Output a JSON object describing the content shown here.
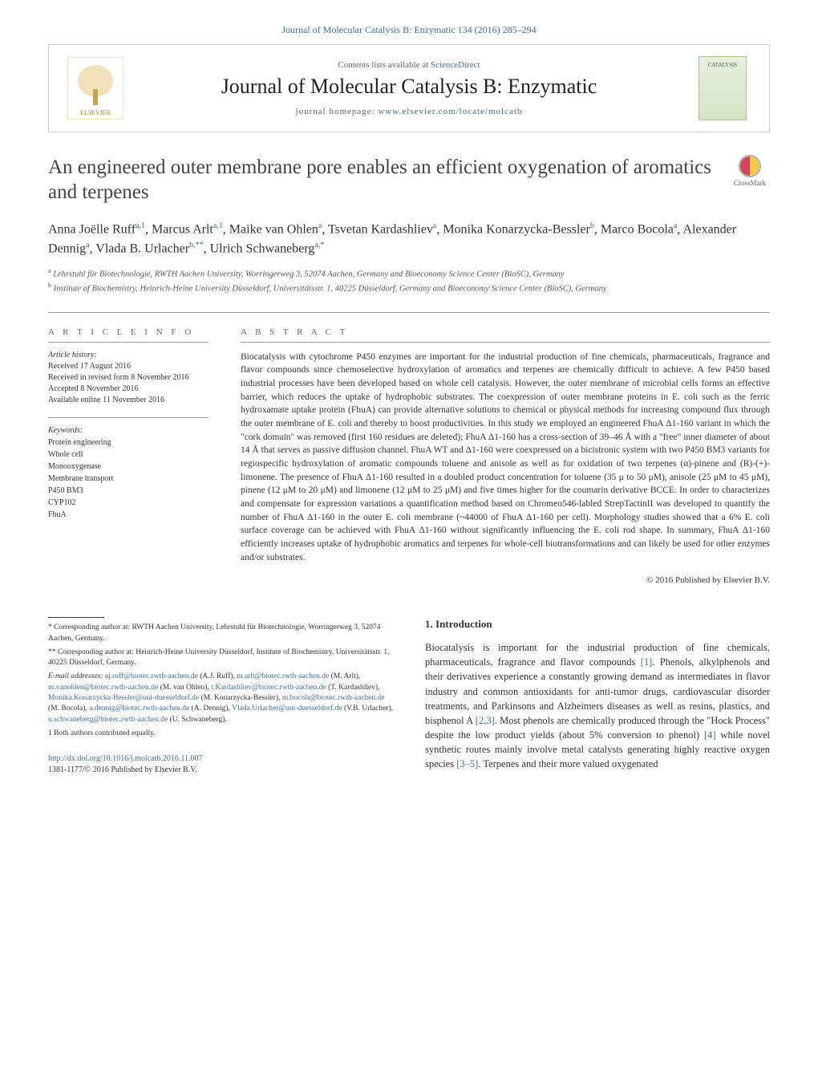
{
  "top_link": {
    "prefix": "Journal of Molecular Catalysis B: Enzymatic 134 (2016) 285–294"
  },
  "header": {
    "contents_prefix": "Contents lists available at ",
    "contents_link": "ScienceDirect",
    "journal_name": "Journal of Molecular Catalysis B: Enzymatic",
    "homepage_prefix": "journal homepage: ",
    "homepage_link": "www.elsevier.com/locate/molcatb",
    "cover_text": "CATALYSIS"
  },
  "crossmark_label": "CrossMark",
  "title": "An engineered outer membrane pore enables an efficient oxygenation of aromatics and terpenes",
  "authors_html": "Anna Joëlle Ruff<sup>a,1</sup>, Marcus Arlt<sup>a,1</sup>, Maike van Ohlen<sup>a</sup>, Tsvetan Kardashliev<sup>a</sup>, Monika Konarzycka-Bessler<sup>b</sup>, Marco Bocola<sup>a</sup>, Alexander Dennig<sup>a</sup>, Vlada B. Urlacher<sup>b,**</sup>, Ulrich Schwaneberg<sup>a,*</sup>",
  "affiliations": [
    "a Lehrstuhl für Biotechnologie, RWTH Aachen University, Worringerweg 3, 52074 Aachen, Germany and Bioeconomy Science Center (BioSC), Germany",
    "b Institute of Biochemistry, Heinrich-Heine University Düsseldorf, Universitätsstr. 1, 40225 Düsseldorf, Germany and Bioeconomy Science Center (BioSC), Germany"
  ],
  "article_info": {
    "heading": "a r t i c l e   i n f o",
    "history_label": "Article history:",
    "history": [
      "Received 17 August 2016",
      "Received in revised form 8 November 2016",
      "Accepted 8 November 2016",
      "Available online 11 November 2016"
    ],
    "keywords_label": "Keywords:",
    "keywords": [
      "Protein engineering",
      "Whole cell",
      "Monooxygenase",
      "Membrane transport",
      "P450 BM3",
      "CYP102",
      "FhuA"
    ]
  },
  "abstract": {
    "heading": "a b s t r a c t",
    "text": "Biocatalysis with cytochrome P450 enzymes are important for the industrial production of fine chemicals, pharmaceuticals, fragrance and flavor compounds since chemoselective hydroxylation of aromatics and terpenes are chemically difficult to achieve. A few P450 based industrial processes have been developed based on whole cell catalysis. However, the outer membrane of microbial cells forms an effective barrier, which reduces the uptake of hydrophobic substrates. The coexpression of outer membrane proteins in E. coli such as the ferric hydroxamate uptake protein (FhuA) can provide alternative solutions to chemical or physical methods for increasing compound flux through the outer membrane of E. coli and thereby to boost productivities. In this study we employed an engineered FhuA Δ1-160 variant in which the \"cork domain\" was removed (first 160 residues are deleted); FhuA Δ1-160 has a cross-section of 39–46 Å with a \"free\" inner diameter of about 14 Å that serves as passive diffusion channel. FhuA WT and Δ1-160 were coexpressed on a bicistronic system with two P450 BM3 variants for regiospecific hydroxylation of aromatic compounds toluene and anisole as well as for oxidation of two terpenes (α)-pinene and (R)-(+)-limonene. The presence of FhuA Δ1-160 resulted in a doubled product concentration for toluene (35 μ to 50 μM), anisole (25 μM to 45 μM), pinene (12 μM to 20 μM) and limonene (12 μM to 25 μM) and five times higher for the coumarin derivative BCCE. In order to characterizes and compensate for expression variations a quantification method based on Chromeo546-labled StrepTactinII was developed to quantify the number of FhuA Δ1-160 in the outer E. coli membrane (~44000 of FhuA Δ1-160 per cell). Morphology studies showed that a 6% E. coli surface coverage can be achieved with FhuA Δ1-160 without significantly influencing the E. coli rod shape. In summary, FhuA Δ1-160 efficiently increases uptake of hydrophobic aromatics and terpenes for whole-cell biotransformations and can likely be used for other enzymes and/or substrates.",
    "copyright": "© 2016 Published by Elsevier B.V."
  },
  "footnotes": {
    "corr1": "* Corresponding author at: RWTH Aachen University, Lehrstuhl für Biotechnologie, Worringerweg 3, 52074 Aachen, Germany.",
    "corr2": "** Corresponding author at: Heinrich-Heine University Düsseldorf, Institute of Biochemistry, Universitätsstr. 1, 40225 Düsseldorf, Germany.",
    "email_label": "E-mail addresses: ",
    "emails": [
      {
        "addr": "aj.ruff@biotec.rwth-aachen.de",
        "who": " (A.J. Ruff), "
      },
      {
        "addr": "m.arlt@biotec.rwth-aachen.de",
        "who": " (M. Arlt), "
      },
      {
        "addr": "m.vanohlen@biotec.rwth-aachen.de",
        "who": " (M. van Ohlen), "
      },
      {
        "addr": "t.Kardashliev@biotec.rwth-aachen.de",
        "who": " (T. Kardashliev), "
      },
      {
        "addr": "Monika.Konarzycka-Bessler@uni-duesseldorf.de",
        "who": " (M. Konarzycka-Bessler), "
      },
      {
        "addr": "m.bocola@biotec.rwth-aachen.de",
        "who": " (M. Bocola), "
      },
      {
        "addr": "a.dennig@biotec.rwth-aachen.de",
        "who": " (A. Dennig), "
      },
      {
        "addr": "Vlada.Urlacher@uni-duesseldorf.de",
        "who": " (V.B. Urlacher), "
      },
      {
        "addr": "u.schwaneberg@biotec.rwth-aachen.de",
        "who": " (U. Schwaneberg)."
      }
    ],
    "equal": "1 Both authors contributed equally."
  },
  "doi": {
    "url": "http://dx.doi.org/10.1016/j.molcatb.2016.11.007",
    "issn_line": "1381-1177/© 2016 Published by Elsevier B.V."
  },
  "intro": {
    "heading": "1. Introduction",
    "para": "Biocatalysis is important for the industrial production of fine chemicals, pharmaceuticals, fragrance and flavor compounds [1]. Phenols, alkylphenols and their derivatives experience a constantly growing demand as intermediates in flavor industry and common antioxidants for anti-tumor drugs, cardiovascular disorder treatments, and Parkinsons and Alzheimers diseases as well as resins, plastics, and bisphenol A [2,3]. Most phenols are chemically produced through the \"Hock Process\" despite the low product yields (about 5% conversion to phenol) [4] while novel synthetic routes mainly involve metal catalysts generating highly reactive oxygen species [3–5]. Terpenes and their more valued oxygenated"
  },
  "colors": {
    "link": "#3a6ea5",
    "text": "#333333",
    "rule": "#999999"
  }
}
